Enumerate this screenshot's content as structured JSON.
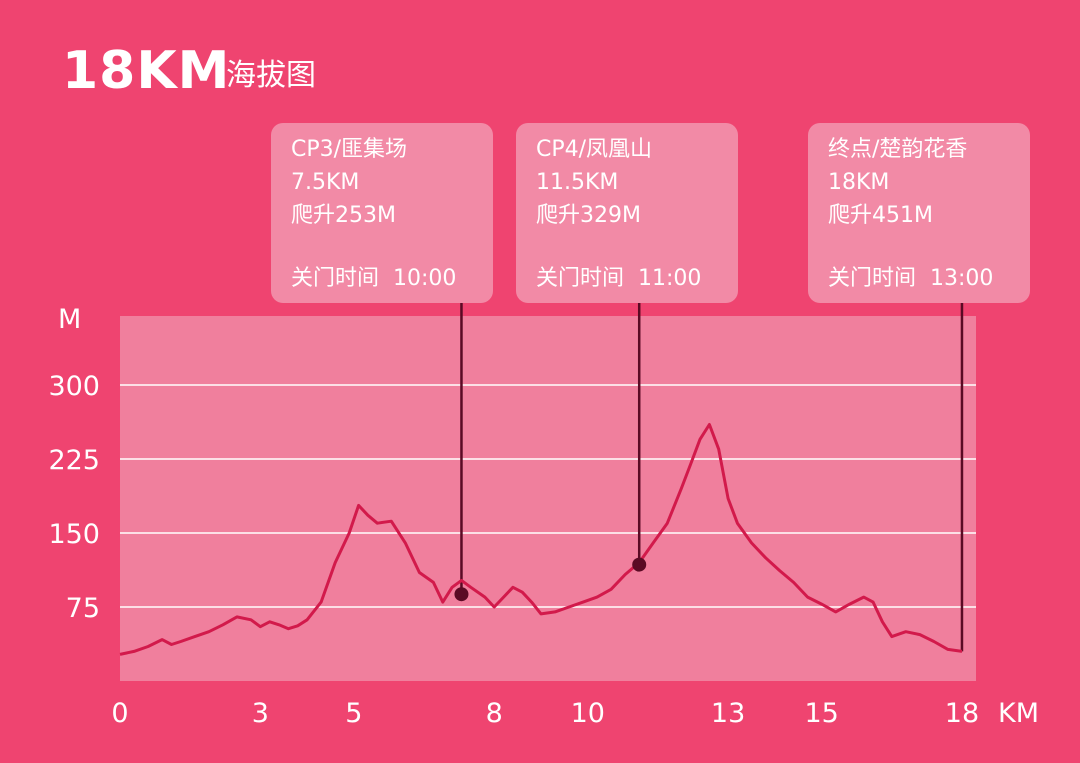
{
  "header": {
    "title": "18KM",
    "subtitle": "海拔图"
  },
  "colors": {
    "background": "#ef4470",
    "plot_area": "#f07f9d",
    "line": "#d21a4b",
    "marker": "#5a0a24",
    "callout_fill": "#f28aa6",
    "grid": "#ffffff"
  },
  "chart_data": {
    "type": "line",
    "title": "18KM",
    "subtitle": "海拔图",
    "xlabel": "KM",
    "ylabel": "M",
    "xlim": [
      0,
      18.3
    ],
    "ylim": [
      0,
      370
    ],
    "x_ticks": [
      0,
      3,
      5,
      8,
      10,
      13,
      15,
      18
    ],
    "x_tick_labels": [
      "0",
      "3",
      "5",
      "8",
      "10",
      "13",
      "15",
      "18"
    ],
    "y_ticks": [
      75,
      150,
      225,
      300
    ],
    "y_tick_labels": [
      "75",
      "150",
      "225",
      "300"
    ],
    "grid": true,
    "series": [
      {
        "x": [
          0,
          0.3,
          0.6,
          0.9,
          1.1,
          1.3,
          1.6,
          1.9,
          2.2,
          2.5,
          2.8,
          3.0,
          3.2,
          3.4,
          3.6,
          3.8,
          4.0,
          4.3,
          4.6,
          4.9,
          5.1,
          5.3,
          5.5,
          5.8,
          6.1,
          6.4,
          6.7,
          6.9,
          7.1,
          7.3,
          7.5,
          7.8,
          8.0,
          8.2,
          8.4,
          8.6,
          8.8,
          9.0,
          9.3,
          9.6,
          9.9,
          10.2,
          10.5,
          10.8,
          11.1,
          11.4,
          11.7,
          12.0,
          12.2,
          12.4,
          12.6,
          12.8,
          13.0,
          13.2,
          13.5,
          13.8,
          14.1,
          14.4,
          14.7,
          15.0,
          15.3,
          15.6,
          15.9,
          16.1,
          16.3,
          16.5,
          16.8,
          17.1,
          17.4,
          17.7,
          18.0
        ],
        "y": [
          27,
          30,
          35,
          42,
          37,
          40,
          45,
          50,
          57,
          65,
          62,
          55,
          60,
          57,
          53,
          56,
          62,
          80,
          120,
          150,
          178,
          168,
          160,
          162,
          140,
          110,
          100,
          80,
          95,
          102,
          95,
          85,
          75,
          85,
          95,
          90,
          80,
          68,
          70,
          75,
          80,
          85,
          93,
          108,
          120,
          140,
          160,
          195,
          220,
          245,
          260,
          235,
          185,
          160,
          140,
          125,
          112,
          100,
          85,
          78,
          70,
          78,
          85,
          80,
          60,
          45,
          50,
          47,
          40,
          32,
          30
        ]
      }
    ],
    "checkpoints": [
      {
        "name": "CP3/匪集场",
        "distance": "7.5KM",
        "climb": "爬升253M",
        "close_label": "关门时间",
        "close_time": "10:00",
        "x": 7.3,
        "y": 88
      },
      {
        "name": "CP4/凤凰山",
        "distance": "11.5KM",
        "climb": "爬升329M",
        "close_label": "关门时间",
        "close_time": "11:00",
        "x": 11.1,
        "y": 118
      },
      {
        "name": "终点/楚韵花香",
        "distance": "18KM",
        "climb": "爬升451M",
        "close_label": "关门时间",
        "close_time": "13:00",
        "x": 18.0,
        "y": 30
      }
    ]
  }
}
